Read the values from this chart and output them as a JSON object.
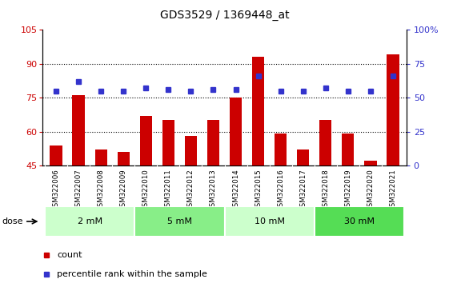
{
  "title": "GDS3529 / 1369448_at",
  "samples": [
    "GSM322006",
    "GSM322007",
    "GSM322008",
    "GSM322009",
    "GSM322010",
    "GSM322011",
    "GSM322012",
    "GSM322013",
    "GSM322014",
    "GSM322015",
    "GSM322016",
    "GSM322017",
    "GSM322018",
    "GSM322019",
    "GSM322020",
    "GSM322021"
  ],
  "counts": [
    54,
    76,
    52,
    51,
    67,
    65,
    58,
    65,
    75,
    93,
    59,
    52,
    65,
    59,
    47,
    94
  ],
  "percentiles": [
    55,
    62,
    55,
    55,
    57,
    56,
    55,
    56,
    56,
    66,
    55,
    55,
    57,
    55,
    55,
    66
  ],
  "bar_color": "#cc0000",
  "dot_color": "#3333cc",
  "ylim_left": [
    45,
    105
  ],
  "ylim_right": [
    0,
    100
  ],
  "yticks_left": [
    45,
    60,
    75,
    90,
    105
  ],
  "yticks_right": [
    0,
    25,
    50,
    75,
    100
  ],
  "ytick_labels_right": [
    "0",
    "25",
    "50",
    "75",
    "100%"
  ],
  "dose_groups": [
    {
      "label": "2 mM",
      "start": 0,
      "end": 3,
      "color": "#ccffcc"
    },
    {
      "label": "5 mM",
      "start": 4,
      "end": 7,
      "color": "#88ee88"
    },
    {
      "label": "10 mM",
      "start": 8,
      "end": 11,
      "color": "#ccffcc"
    },
    {
      "label": "30 mM",
      "start": 12,
      "end": 15,
      "color": "#55dd55"
    }
  ],
  "dose_label": "dose",
  "legend_count_label": "count",
  "legend_percentile_label": "percentile rank within the sample",
  "grid_lines": [
    60,
    75,
    90
  ],
  "xtick_bg_color": "#bbbbbb",
  "bar_width": 0.55
}
